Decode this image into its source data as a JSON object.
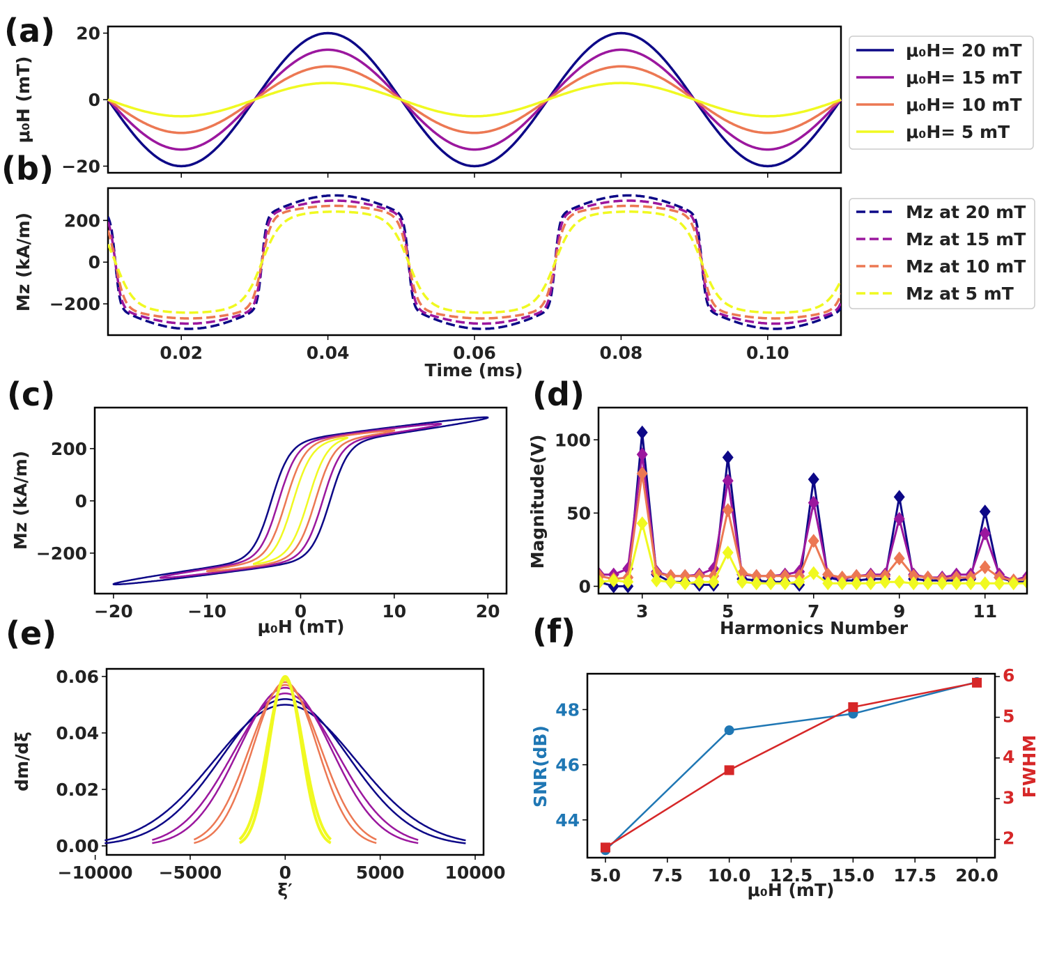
{
  "panel_labels": [
    "(a)",
    "(b)",
    "(c)",
    "(d)",
    "(e)",
    "(f)"
  ],
  "colors": {
    "20mT": "#0d0887",
    "15mT": "#9b179e",
    "10mT": "#ec7853",
    "5mT": "#f0f921",
    "snr": "#1f77b4",
    "fwhm": "#d62728"
  },
  "chart_data": [
    {
      "panel": "(a)",
      "type": "line",
      "ylabel": "μ₀H (mT)",
      "xlim": [
        0.01,
        0.11
      ],
      "ylim": [
        -22,
        22
      ],
      "xticks": [
        0.02,
        0.04,
        0.06,
        0.08,
        0.1
      ],
      "yticks": [
        -20,
        0,
        20
      ],
      "ytick_labels": [
        "−20",
        "0",
        "20"
      ],
      "period_ms": 0.04,
      "legend": "outside-right",
      "series": [
        {
          "name": "μ₀H= 20 mT",
          "amplitude_mT": 20,
          "color": "#0d0887"
        },
        {
          "name": "μ₀H= 15 mT",
          "amplitude_mT": 15,
          "color": "#9b179e"
        },
        {
          "name": "μ₀H= 10 mT",
          "amplitude_mT": 10,
          "color": "#ec7853"
        },
        {
          "name": "μ₀H= 5 mT",
          "amplitude_mT": 5,
          "color": "#f0f921"
        }
      ]
    },
    {
      "panel": "(b)",
      "type": "line",
      "xlabel": "Time (ms)",
      "ylabel": "Mz (kA/m)",
      "xlim": [
        0.01,
        0.11
      ],
      "ylim": [
        -350,
        355
      ],
      "xticks": [
        0.02,
        0.04,
        0.06,
        0.08,
        0.1
      ],
      "xtick_labels": [
        "0.02",
        "0.04",
        "0.06",
        "0.08",
        "0.10"
      ],
      "yticks": [
        -200,
        0,
        200
      ],
      "ytick_labels": [
        "−200",
        "0",
        "200"
      ],
      "line_style": "dashed",
      "legend": "outside-right",
      "series": [
        {
          "name": "Mz at 20 mT",
          "field_mT": 20,
          "max_Mz": 320,
          "color": "#0d0887"
        },
        {
          "name": "Mz at 15 mT",
          "field_mT": 15,
          "max_Mz": 300,
          "color": "#9b179e"
        },
        {
          "name": "Mz at 10 mT",
          "field_mT": 10,
          "max_Mz": 275,
          "color": "#ec7853"
        },
        {
          "name": "Mz at 5 mT",
          "field_mT": 5,
          "max_Mz": 215,
          "color": "#f0f921"
        }
      ]
    },
    {
      "panel": "(c)",
      "type": "line",
      "xlabel": "μ₀H (mT)",
      "ylabel": "Mz (kA/m)",
      "xlim": [
        -22,
        22
      ],
      "ylim": [
        -355,
        357
      ],
      "xticks": [
        -20,
        -10,
        0,
        10,
        20
      ],
      "xtick_labels": [
        "−20",
        "−10",
        "0",
        "10",
        "20"
      ],
      "yticks": [
        -200,
        0,
        200
      ],
      "ytick_labels": [
        "−200",
        "0",
        "200"
      ],
      "series": [
        {
          "field_mT": 20,
          "color": "#0d0887"
        },
        {
          "field_mT": 15,
          "color": "#9b179e"
        },
        {
          "field_mT": 10,
          "color": "#ec7853"
        },
        {
          "field_mT": 5,
          "color": "#f0f921"
        }
      ]
    },
    {
      "panel": "(d)",
      "type": "line",
      "marker": "diamond",
      "xlabel": "Harmonics Number",
      "ylabel": "Magnitude(V)",
      "xlim": [
        1.98,
        11.98
      ],
      "ylim": [
        -5,
        122
      ],
      "xticks": [
        3,
        5,
        7,
        9,
        11
      ],
      "xtick_labels": [
        "3",
        "5",
        "7",
        "9",
        "11"
      ],
      "yticks": [
        0,
        50,
        100
      ],
      "ytick_labels": [
        "0",
        "50",
        "100"
      ],
      "x_start": 2,
      "x_step": 0.3333,
      "series": [
        {
          "field_mT": 20,
          "color": "#0d0887",
          "values": [
            3,
            0,
            0,
            105,
            8,
            3,
            3,
            1,
            1,
            88,
            5,
            4,
            3,
            3,
            1,
            73,
            6,
            4,
            4,
            5,
            5,
            61,
            5,
            4,
            4,
            4,
            5,
            51,
            6,
            3,
            3
          ]
        },
        {
          "field_mT": 15,
          "color": "#9b179e",
          "values": [
            8,
            8,
            12,
            90,
            10,
            7,
            7,
            8,
            12,
            72,
            8,
            7,
            7,
            8,
            10,
            57,
            8,
            5,
            7,
            8,
            8,
            46,
            8,
            6,
            6,
            8,
            8,
            36,
            8,
            4,
            7
          ]
        },
        {
          "field_mT": 10,
          "color": "#ec7853",
          "values": [
            7,
            5,
            6,
            77,
            9,
            7,
            7,
            7,
            7,
            52,
            9,
            7,
            7,
            7,
            7,
            31,
            8,
            6,
            7,
            7,
            7,
            19,
            7,
            6,
            5,
            6,
            6,
            13,
            6,
            4,
            5
          ]
        },
        {
          "field_mT": 5,
          "color": "#f0f921",
          "values": [
            3,
            4,
            3,
            43,
            4,
            3,
            2,
            3,
            3,
            23,
            3,
            2,
            2,
            2,
            3,
            9,
            2,
            2,
            2,
            2,
            3,
            3,
            2,
            2,
            2,
            2,
            2,
            2,
            2,
            2,
            2
          ]
        }
      ]
    },
    {
      "panel": "(e)",
      "type": "line",
      "xlabel": "ξ′",
      "ylabel": "dm/dξ",
      "xlim": [
        -9400,
        10440
      ],
      "ylim": [
        -0.0032,
        0.0627
      ],
      "xticks": [
        -10000,
        -5000,
        0,
        5000,
        10000
      ],
      "xtick_labels": [
        "−10000",
        "−5000",
        "0",
        "5000",
        "10000"
      ],
      "yticks": [
        0,
        0.02,
        0.04,
        0.06
      ],
      "ytick_labels": [
        "0.00",
        "0.02",
        "0.04",
        "0.06"
      ],
      "series": [
        {
          "field_mT": 20,
          "color": "#0d0887",
          "peaks": [
            0.052,
            0.05
          ],
          "half_range": 9500
        },
        {
          "field_mT": 15,
          "color": "#9b179e",
          "peaks": [
            0.056,
            0.054
          ],
          "half_range": 7000
        },
        {
          "field_mT": 10,
          "color": "#ec7853",
          "peaks": [
            0.058,
            0.057
          ],
          "half_range": 4800
        },
        {
          "field_mT": 5,
          "color": "#f0f921",
          "peaks": [
            0.06,
            0.059
          ],
          "half_range": 2400
        }
      ]
    },
    {
      "panel": "(f)",
      "type": "line",
      "xlabel": "μ₀H (mT)",
      "ylabel": "SNR(dB)",
      "ylabel_right": "FWHM",
      "x": [
        5,
        10,
        15,
        20
      ],
      "xlim": [
        4.27,
        20.73
      ],
      "ylim": [
        42.63,
        49.3
      ],
      "ylim_right": [
        1.55,
        6.07
      ],
      "xticks": [
        5,
        7.5,
        10,
        12.5,
        15,
        17.5,
        20
      ],
      "xtick_labels": [
        "5.0",
        "7.5",
        "10.0",
        "12.5",
        "15.0",
        "17.5",
        "20.0"
      ],
      "yticks": [
        44,
        46,
        48
      ],
      "ytick_labels": [
        "44",
        "46",
        "48"
      ],
      "yticks_right": [
        2,
        3,
        4,
        5,
        6
      ],
      "ytick_labels_right": [
        "2",
        "3",
        "4",
        "5",
        "6"
      ],
      "series": [
        {
          "metric": "SNR",
          "axis": "left",
          "marker": "circle",
          "color": "#1f77b4",
          "values": [
            42.9,
            47.25,
            47.85,
            49.0
          ]
        },
        {
          "metric": "FWHM",
          "axis": "right",
          "marker": "square",
          "color": "#d62728",
          "values": [
            1.8,
            3.7,
            5.25,
            5.85
          ]
        }
      ]
    }
  ]
}
